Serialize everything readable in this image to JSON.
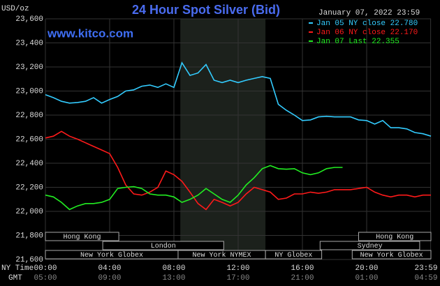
{
  "chart_data": {
    "type": "line",
    "title": "24 Hour Spot Silver (Bid)",
    "subtitle": "www.kitco.com",
    "y_label": "USD/oz",
    "timestamp": "January 07, 2022 23:59",
    "x_row_labels": [
      "NY Time",
      "GMT"
    ],
    "x": [
      0,
      0.5,
      1,
      1.5,
      2,
      2.5,
      3,
      3.5,
      4,
      4.5,
      5,
      5.5,
      6,
      6.5,
      7,
      7.5,
      8,
      8.5,
      9,
      9.5,
      10,
      10.5,
      11,
      11.5,
      12,
      12.5,
      13,
      13.5,
      14,
      14.5,
      15,
      15.5,
      16,
      16.5,
      17,
      17.5,
      18,
      18.5,
      19,
      19.5,
      20,
      20.5,
      21,
      21.5,
      22,
      22.5,
      23,
      23.5,
      24
    ],
    "series": [
      {
        "name": "Jan 05 NY close 22.780",
        "color": "#33ccff",
        "values": [
          22970,
          22945,
          22915,
          22900,
          22905,
          22915,
          22945,
          22900,
          22930,
          22955,
          23000,
          23010,
          23040,
          23050,
          23030,
          23060,
          23030,
          23235,
          23130,
          23150,
          23220,
          23090,
          23070,
          23090,
          23070,
          23090,
          23105,
          23120,
          23105,
          22890,
          22840,
          22800,
          22755,
          22760,
          22785,
          22790,
          22785,
          22785,
          22785,
          22760,
          22755,
          22725,
          22755,
          22695,
          22695,
          22685,
          22655,
          22645,
          22625
        ]
      },
      {
        "name": "Jan 06 NY close 22.170",
        "color": "#ff1a1a",
        "values": [
          22610,
          22625,
          22665,
          22625,
          22600,
          22570,
          22540,
          22510,
          22480,
          22365,
          22220,
          22145,
          22135,
          22160,
          22200,
          22335,
          22305,
          22250,
          22160,
          22065,
          22015,
          22100,
          22075,
          22045,
          22075,
          22145,
          22200,
          22180,
          22160,
          22100,
          22110,
          22145,
          22145,
          22160,
          22150,
          22160,
          22180,
          22180,
          22180,
          22190,
          22200,
          22160,
          22135,
          22120,
          22135,
          22135,
          22120,
          22135,
          22135
        ]
      },
      {
        "name": "Jan 07 Last 22.355",
        "color": "#22ee22",
        "values": [
          22135,
          22120,
          22075,
          22015,
          22045,
          22065,
          22065,
          22075,
          22100,
          22190,
          22200,
          22205,
          22190,
          22145,
          22135,
          22135,
          22120,
          22075,
          22100,
          22135,
          22190,
          22145,
          22100,
          22075,
          22135,
          22220,
          22280,
          22355,
          22380,
          22355,
          22350,
          22355,
          22320,
          22305,
          22320,
          22355,
          22365,
          22365,
          null,
          null,
          null,
          null,
          null,
          null,
          null,
          null,
          null,
          null,
          null
        ]
      }
    ],
    "xlim": [
      0,
      24
    ],
    "xticks": [
      {
        "value": 0,
        "label": "00:00"
      },
      {
        "value": 4,
        "label": "04:00"
      },
      {
        "value": 8,
        "label": "08:00"
      },
      {
        "value": 12,
        "label": "12:00"
      },
      {
        "value": 16,
        "label": "16:00"
      },
      {
        "value": 20,
        "label": "20:00"
      },
      {
        "value": 23.983,
        "label": "23:59"
      }
    ],
    "x2ticks": [
      {
        "value": 0,
        "label": "05:00"
      },
      {
        "value": 4,
        "label": "09:00"
      },
      {
        "value": 8,
        "label": "13:00"
      },
      {
        "value": 12,
        "label": "17:00"
      },
      {
        "value": 16,
        "label": "21:00"
      },
      {
        "value": 20,
        "label": "01:00"
      },
      {
        "value": 23.983,
        "label": "04:59"
      }
    ],
    "ylim": [
      21600,
      23600
    ],
    "yticks": [
      {
        "value": 21600,
        "label": "21,600"
      },
      {
        "value": 21800,
        "label": "21,800"
      },
      {
        "value": 22000,
        "label": "22,000"
      },
      {
        "value": 22200,
        "label": "22,200"
      },
      {
        "value": 22400,
        "label": "22,400"
      },
      {
        "value": 22600,
        "label": "22,600"
      },
      {
        "value": 22800,
        "label": "22,800"
      },
      {
        "value": 23000,
        "label": "23,000"
      },
      {
        "value": 23200,
        "label": "23,200"
      },
      {
        "value": 23400,
        "label": "23,400"
      },
      {
        "value": 23600,
        "label": "23,600"
      }
    ],
    "grid": true,
    "highlight": [
      8.4,
      13.7
    ],
    "sessions": [
      {
        "label": "Hong Kong",
        "row": 0,
        "start": 0,
        "end": 4.57
      },
      {
        "label": "Hong Kong",
        "row": 0,
        "start": 19.5,
        "end": 24
      },
      {
        "label": "London",
        "row": 1,
        "start": 3.57,
        "end": 11.1
      },
      {
        "label": "Sydney",
        "row": 1,
        "start": 17.1,
        "end": 23.3
      },
      {
        "label": "New York Globex",
        "row": 2,
        "start": 0,
        "end": 8.26
      },
      {
        "label": "New York NYMEX",
        "row": 2,
        "start": 8.26,
        "end": 13.7
      },
      {
        "label": "NY Globex",
        "row": 2,
        "start": 13.7,
        "end": 17.2
      },
      {
        "label": "New York Globex",
        "row": 2,
        "start": 19.1,
        "end": 24
      }
    ]
  }
}
